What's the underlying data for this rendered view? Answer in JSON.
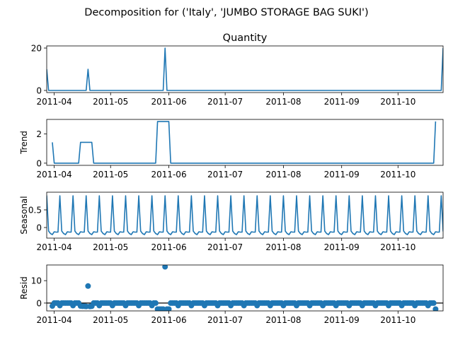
{
  "figure": {
    "suptitle": "Decomposition for ('Italy', 'JUMBO STORAGE BAG SUKI')",
    "x_ticks": [
      "2011-04",
      "2011-05",
      "2011-06",
      "2011-07",
      "2011-08",
      "2011-09",
      "2011-10"
    ],
    "x_range": [
      "2011-03-28",
      "2011-10-25"
    ],
    "line_color": "#1f77b4"
  },
  "chart_data": [
    {
      "type": "line",
      "title": "Quantity",
      "ylabel": "",
      "ylim": [
        -1,
        21
      ],
      "yticks": [
        0,
        20
      ],
      "color": "#1f77b4",
      "points": [
        [
          "2011-03-28",
          10
        ],
        [
          "2011-03-29",
          0
        ],
        [
          "2011-04-18",
          0
        ],
        [
          "2011-04-19",
          10
        ],
        [
          "2011-04-20",
          0
        ],
        [
          "2011-05-29",
          0
        ],
        [
          "2011-05-30",
          20
        ],
        [
          "2011-05-31",
          0
        ],
        [
          "2011-10-24",
          0
        ],
        [
          "2011-10-25",
          20
        ]
      ]
    },
    {
      "type": "line",
      "title": "",
      "ylabel": "Trend",
      "ylim": [
        -0.15,
        3.0
      ],
      "yticks": [
        0,
        2
      ],
      "color": "#1f77b4",
      "points": [
        [
          "2011-03-31",
          1.43
        ],
        [
          "2011-04-01",
          0
        ],
        [
          "2011-04-14",
          0
        ],
        [
          "2011-04-15",
          1.43
        ],
        [
          "2011-04-21",
          1.43
        ],
        [
          "2011-04-22",
          0
        ],
        [
          "2011-05-25",
          0
        ],
        [
          "2011-05-26",
          2.86
        ],
        [
          "2011-06-01",
          2.86
        ],
        [
          "2011-06-02",
          0
        ],
        [
          "2011-10-20",
          0
        ],
        [
          "2011-10-21",
          2.86
        ]
      ]
    },
    {
      "type": "line",
      "title": "",
      "ylabel": "Seasonal",
      "ylim": [
        -0.3,
        1.0
      ],
      "yticks": [
        0.0,
        0.5
      ],
      "color": "#1f77b4",
      "period_days": 7,
      "peak_date": "2011-03-28",
      "pattern": [
        0.9,
        -0.1,
        -0.17,
        -0.2,
        -0.12,
        -0.13,
        -0.13
      ]
    },
    {
      "type": "scatter",
      "title": "",
      "ylabel": "Resid",
      "ylim": [
        -3.5,
        17
      ],
      "yticks": [
        0,
        10
      ],
      "color": "#1f77b4",
      "baseline": 0,
      "points": [
        [
          "2011-03-31",
          -1.3
        ],
        [
          "2011-04-01",
          0
        ],
        [
          "2011-04-02",
          0
        ],
        [
          "2011-04-03",
          0
        ],
        [
          "2011-04-04",
          -1.1
        ],
        [
          "2011-04-05",
          0
        ],
        [
          "2011-04-06",
          0
        ],
        [
          "2011-04-07",
          0
        ],
        [
          "2011-04-08",
          0
        ],
        [
          "2011-04-09",
          0
        ],
        [
          "2011-04-10",
          0
        ],
        [
          "2011-04-11",
          -1.1
        ],
        [
          "2011-04-12",
          0
        ],
        [
          "2011-04-13",
          0
        ],
        [
          "2011-04-14",
          0
        ],
        [
          "2011-04-15",
          -1.3
        ],
        [
          "2011-04-16",
          -1.4
        ],
        [
          "2011-04-17",
          -1.4
        ],
        [
          "2011-04-18",
          -1.5
        ],
        [
          "2011-04-19",
          7.6
        ],
        [
          "2011-04-20",
          -1.5
        ],
        [
          "2011-04-21",
          -1.4
        ],
        [
          "2011-04-22",
          0
        ],
        [
          "2011-04-23",
          0
        ],
        [
          "2011-04-24",
          0
        ],
        [
          "2011-04-25",
          -1.1
        ],
        [
          "2011-04-26",
          0
        ],
        [
          "2011-04-27",
          0
        ],
        [
          "2011-04-28",
          0
        ],
        [
          "2011-04-29",
          0
        ],
        [
          "2011-04-30",
          0
        ],
        [
          "2011-05-01",
          0
        ],
        [
          "2011-05-02",
          -1.1
        ],
        [
          "2011-05-03",
          0
        ],
        [
          "2011-05-04",
          0
        ],
        [
          "2011-05-05",
          0
        ],
        [
          "2011-05-06",
          0
        ],
        [
          "2011-05-07",
          0
        ],
        [
          "2011-05-08",
          0
        ],
        [
          "2011-05-09",
          -1.1
        ],
        [
          "2011-05-10",
          0
        ],
        [
          "2011-05-11",
          0
        ],
        [
          "2011-05-12",
          0
        ],
        [
          "2011-05-13",
          0
        ],
        [
          "2011-05-14",
          0
        ],
        [
          "2011-05-15",
          0
        ],
        [
          "2011-05-16",
          -1.1
        ],
        [
          "2011-05-17",
          0
        ],
        [
          "2011-05-18",
          0
        ],
        [
          "2011-05-19",
          0
        ],
        [
          "2011-05-20",
          0
        ],
        [
          "2011-05-21",
          0
        ],
        [
          "2011-05-22",
          0
        ],
        [
          "2011-05-23",
          -1.1
        ],
        [
          "2011-05-24",
          0
        ],
        [
          "2011-05-25",
          0
        ],
        [
          "2011-05-26",
          -2.7
        ],
        [
          "2011-05-27",
          -2.7
        ],
        [
          "2011-05-28",
          -2.7
        ],
        [
          "2011-05-29",
          -2.7
        ],
        [
          "2011-05-30",
          16.2
        ],
        [
          "2011-05-31",
          -2.7
        ],
        [
          "2011-06-01",
          -2.7
        ],
        [
          "2011-06-02",
          0
        ],
        [
          "2011-06-03",
          0
        ],
        [
          "2011-06-04",
          0
        ],
        [
          "2011-06-05",
          0
        ],
        [
          "2011-06-06",
          -1.1
        ],
        [
          "2011-06-07",
          0
        ],
        [
          "2011-06-08",
          0
        ],
        [
          "2011-06-09",
          0
        ],
        [
          "2011-06-10",
          0
        ],
        [
          "2011-06-11",
          0
        ],
        [
          "2011-06-12",
          0
        ],
        [
          "2011-06-13",
          -1.1
        ],
        [
          "2011-06-14",
          0
        ],
        [
          "2011-06-15",
          0
        ],
        [
          "2011-06-16",
          0
        ],
        [
          "2011-06-17",
          0
        ],
        [
          "2011-06-18",
          0
        ],
        [
          "2011-06-19",
          0
        ],
        [
          "2011-06-20",
          -1.1
        ],
        [
          "2011-06-21",
          0
        ],
        [
          "2011-06-22",
          0
        ],
        [
          "2011-06-23",
          0
        ],
        [
          "2011-06-24",
          0
        ],
        [
          "2011-06-25",
          0
        ],
        [
          "2011-06-26",
          0
        ],
        [
          "2011-06-27",
          -1.1
        ],
        [
          "2011-06-28",
          0
        ],
        [
          "2011-06-29",
          0
        ],
        [
          "2011-06-30",
          0
        ],
        [
          "2011-07-01",
          0
        ],
        [
          "2011-07-02",
          0
        ],
        [
          "2011-07-03",
          0
        ],
        [
          "2011-07-04",
          -1.1
        ],
        [
          "2011-07-05",
          0
        ],
        [
          "2011-07-06",
          0
        ],
        [
          "2011-07-07",
          0
        ],
        [
          "2011-07-08",
          0
        ],
        [
          "2011-07-09",
          0
        ],
        [
          "2011-07-10",
          0
        ],
        [
          "2011-07-11",
          -1.1
        ],
        [
          "2011-07-12",
          0
        ],
        [
          "2011-07-13",
          0
        ],
        [
          "2011-07-14",
          0
        ],
        [
          "2011-07-15",
          0
        ],
        [
          "2011-07-16",
          0
        ],
        [
          "2011-07-17",
          0
        ],
        [
          "2011-07-18",
          -1.1
        ],
        [
          "2011-07-19",
          0
        ],
        [
          "2011-07-20",
          0
        ],
        [
          "2011-07-21",
          0
        ],
        [
          "2011-07-22",
          0
        ],
        [
          "2011-07-23",
          0
        ],
        [
          "2011-07-24",
          0
        ],
        [
          "2011-07-25",
          -1.1
        ],
        [
          "2011-07-26",
          0
        ],
        [
          "2011-07-27",
          0
        ],
        [
          "2011-07-28",
          0
        ],
        [
          "2011-07-29",
          0
        ],
        [
          "2011-07-30",
          0
        ],
        [
          "2011-07-31",
          0
        ],
        [
          "2011-08-01",
          -1.1
        ],
        [
          "2011-08-02",
          0
        ],
        [
          "2011-08-03",
          0
        ],
        [
          "2011-08-04",
          0
        ],
        [
          "2011-08-05",
          0
        ],
        [
          "2011-08-06",
          0
        ],
        [
          "2011-08-07",
          0
        ],
        [
          "2011-08-08",
          -1.1
        ],
        [
          "2011-08-09",
          0
        ],
        [
          "2011-08-10",
          0
        ],
        [
          "2011-08-11",
          0
        ],
        [
          "2011-08-12",
          0
        ],
        [
          "2011-08-13",
          0
        ],
        [
          "2011-08-14",
          0
        ],
        [
          "2011-08-15",
          -1.1
        ],
        [
          "2011-08-16",
          0
        ],
        [
          "2011-08-17",
          0
        ],
        [
          "2011-08-18",
          0
        ],
        [
          "2011-08-19",
          0
        ],
        [
          "2011-08-20",
          0
        ],
        [
          "2011-08-21",
          0
        ],
        [
          "2011-08-22",
          -1.1
        ],
        [
          "2011-08-23",
          0
        ],
        [
          "2011-08-24",
          0
        ],
        [
          "2011-08-25",
          0
        ],
        [
          "2011-08-26",
          0
        ],
        [
          "2011-08-27",
          0
        ],
        [
          "2011-08-28",
          0
        ],
        [
          "2011-08-29",
          -1.1
        ],
        [
          "2011-08-30",
          0
        ],
        [
          "2011-08-31",
          0
        ],
        [
          "2011-09-01",
          0
        ],
        [
          "2011-09-02",
          0
        ],
        [
          "2011-09-03",
          0
        ],
        [
          "2011-09-04",
          0
        ],
        [
          "2011-09-05",
          -1.1
        ],
        [
          "2011-09-06",
          0
        ],
        [
          "2011-09-07",
          0
        ],
        [
          "2011-09-08",
          0
        ],
        [
          "2011-09-09",
          0
        ],
        [
          "2011-09-10",
          0
        ],
        [
          "2011-09-11",
          0
        ],
        [
          "2011-09-12",
          -1.1
        ],
        [
          "2011-09-13",
          0
        ],
        [
          "2011-09-14",
          0
        ],
        [
          "2011-09-15",
          0
        ],
        [
          "2011-09-16",
          0
        ],
        [
          "2011-09-17",
          0
        ],
        [
          "2011-09-18",
          0
        ],
        [
          "2011-09-19",
          -1.1
        ],
        [
          "2011-09-20",
          0
        ],
        [
          "2011-09-21",
          0
        ],
        [
          "2011-09-22",
          0
        ],
        [
          "2011-09-23",
          0
        ],
        [
          "2011-09-24",
          0
        ],
        [
          "2011-09-25",
          0
        ],
        [
          "2011-09-26",
          -1.1
        ],
        [
          "2011-09-27",
          0
        ],
        [
          "2011-09-28",
          0
        ],
        [
          "2011-09-29",
          0
        ],
        [
          "2011-09-30",
          0
        ],
        [
          "2011-10-01",
          0
        ],
        [
          "2011-10-02",
          0
        ],
        [
          "2011-10-03",
          -1.1
        ],
        [
          "2011-10-04",
          0
        ],
        [
          "2011-10-05",
          0
        ],
        [
          "2011-10-06",
          0
        ],
        [
          "2011-10-07",
          0
        ],
        [
          "2011-10-08",
          0
        ],
        [
          "2011-10-09",
          0
        ],
        [
          "2011-10-10",
          -1.1
        ],
        [
          "2011-10-11",
          0
        ],
        [
          "2011-10-12",
          0
        ],
        [
          "2011-10-13",
          0
        ],
        [
          "2011-10-14",
          0
        ],
        [
          "2011-10-15",
          0
        ],
        [
          "2011-10-16",
          0
        ],
        [
          "2011-10-17",
          -1.1
        ],
        [
          "2011-10-18",
          0
        ],
        [
          "2011-10-19",
          0
        ],
        [
          "2011-10-20",
          0
        ],
        [
          "2011-10-21",
          -2.7
        ]
      ]
    }
  ]
}
